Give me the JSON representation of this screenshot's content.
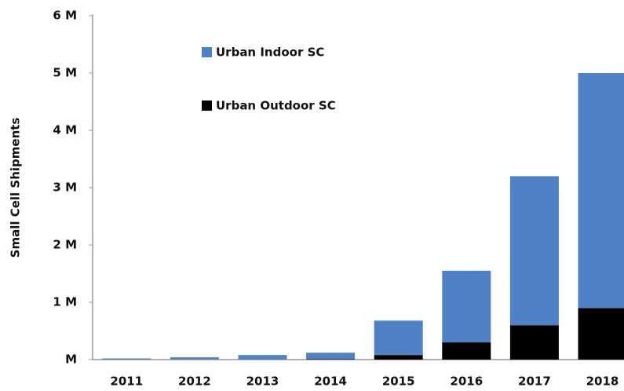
{
  "chart_data": {
    "type": "stacked_bar",
    "y_label": "Small Cell Shipments",
    "categories": [
      "2011",
      "2012",
      "2013",
      "2014",
      "2015",
      "2016",
      "2017",
      "2018"
    ],
    "series": [
      {
        "name": "Urban Outdoor SC",
        "color": "#000000",
        "values": [
          0,
          0,
          0,
          0.01,
          0.08,
          0.3,
          0.6,
          0.9
        ]
      },
      {
        "name": "Urban Indoor SC",
        "color": "#4f81c7",
        "values": [
          0.02,
          0.04,
          0.08,
          0.11,
          0.6,
          1.25,
          2.6,
          4.1
        ]
      }
    ],
    "ylim": [
      0,
      6
    ],
    "yticks": [
      {
        "value": 0,
        "label": "M"
      },
      {
        "value": 1,
        "label": "1 M"
      },
      {
        "value": 2,
        "label": "2 M"
      },
      {
        "value": 3,
        "label": "3 M"
      },
      {
        "value": 4,
        "label": "4 M"
      },
      {
        "value": 5,
        "label": "5 M"
      },
      {
        "value": 6,
        "label": "6 M"
      }
    ],
    "grid": false
  }
}
